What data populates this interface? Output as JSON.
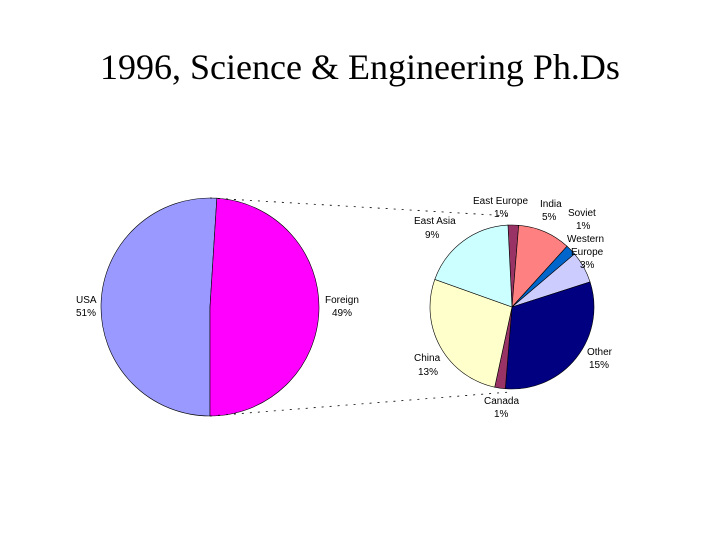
{
  "title": "1996, Science & Engineering Ph.Ds",
  "chart_data": [
    {
      "type": "pie",
      "series": [
        {
          "label": "USA",
          "value_label": "51%",
          "value": 51,
          "color": "#9999ff"
        },
        {
          "label": "Foreign",
          "value_label": "49%",
          "value": 49,
          "color": "#ff00ff"
        }
      ]
    },
    {
      "type": "pie",
      "series": [
        {
          "label": "East Europe",
          "value_label": "1%",
          "value": 1,
          "color": "#993366"
        },
        {
          "label": "India",
          "value_label": "5%",
          "value": 5,
          "color": "#ff8080"
        },
        {
          "label": "Soviet",
          "value_label": "1%",
          "value": 1,
          "color": "#0066cc"
        },
        {
          "label": "Western Europe",
          "value_label": "3%",
          "value": 3,
          "color": "#ccccff"
        },
        {
          "label": "Other",
          "value_label": "15%",
          "value": 15,
          "color": "#000080"
        },
        {
          "label": "Canada",
          "value_label": "1%",
          "value": 1,
          "color": "#993366"
        },
        {
          "label": "China",
          "value_label": "13%",
          "value": 13,
          "color": "#ffffcc"
        },
        {
          "label": "East Asia",
          "value_label": "9%",
          "value": 9,
          "color": "#ccffff"
        }
      ]
    }
  ]
}
